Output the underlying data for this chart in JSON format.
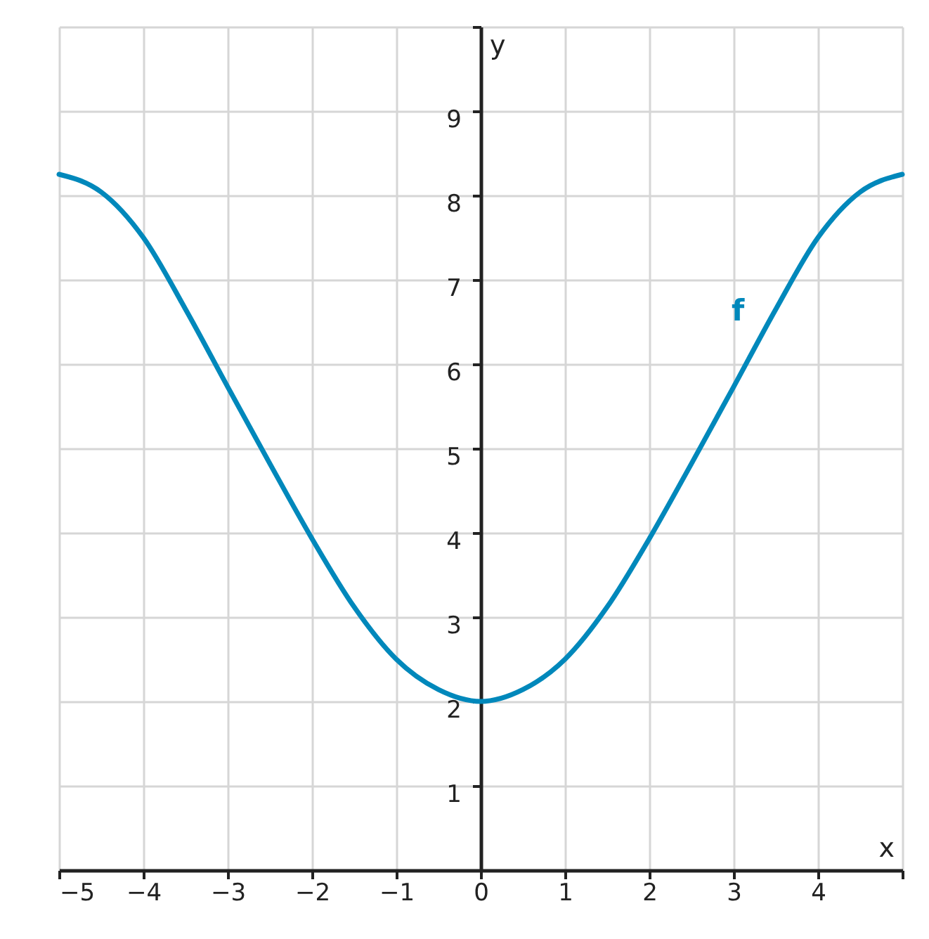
{
  "chart_data": {
    "type": "line",
    "xlabel": "x",
    "ylabel": "y",
    "x": [
      -5,
      -4.5,
      -4,
      -3.5,
      -3,
      -2.5,
      -2,
      -1.5,
      -1,
      -0.5,
      0,
      0.5,
      1,
      1.5,
      2,
      2.5,
      3,
      3.5,
      4,
      4.5,
      5
    ],
    "series": [
      {
        "name": "f",
        "color": "#0088bb",
        "values": [
          8.25,
          8.04,
          7.5,
          6.65,
          5.73,
          4.82,
          3.93,
          3.12,
          2.5,
          2.14,
          2,
          2.14,
          2.5,
          3.12,
          3.93,
          4.82,
          5.73,
          6.65,
          7.5,
          8.04,
          8.25
        ]
      }
    ],
    "xlim": [
      -5,
      5
    ],
    "ylim": [
      0,
      10
    ],
    "xticks": [
      {
        "value": -5,
        "label": "−5"
      },
      {
        "value": -4,
        "label": "−4"
      },
      {
        "value": -3,
        "label": "−3"
      },
      {
        "value": -2,
        "label": "−2"
      },
      {
        "value": -1,
        "label": "−1"
      },
      0,
      1,
      2,
      3,
      4,
      {
        "value": 5,
        "label": null
      }
    ],
    "yticks": [
      1,
      2,
      3,
      4,
      5,
      6,
      7,
      8,
      9,
      {
        "value": 10,
        "label": null
      }
    ],
    "grid": true,
    "marker": "none",
    "line_style": "solid"
  }
}
